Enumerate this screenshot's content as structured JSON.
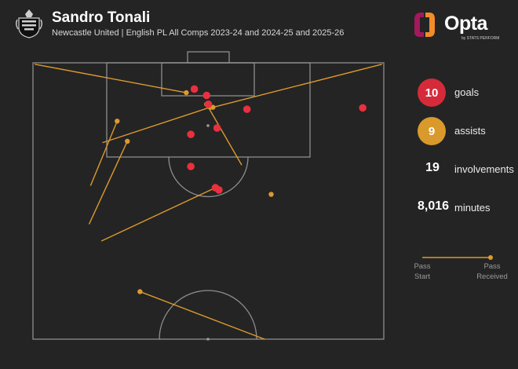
{
  "header": {
    "title": "Sandro Tonali",
    "subtitle": "Newcastle United | English PL All Comps 2023-24 and 2024-25 and 2025-26",
    "brand_name": "Opta",
    "brand_sub": "by STATS PERFORM",
    "crest_icon": "newcastle-crest-icon"
  },
  "stats": [
    {
      "value": "10",
      "label": "goals",
      "color": "#d52a3a"
    },
    {
      "value": "9",
      "label": "assists",
      "color": "#d99a2b"
    },
    {
      "value": "19",
      "label": "involvements"
    },
    {
      "value": "8,016",
      "label": "minutes"
    }
  ],
  "legend": {
    "start_label_1": "Pass",
    "start_label_2": "Start",
    "end_label_1": "Pass",
    "end_label_2": "Received"
  },
  "colors": {
    "goal": "#e8303f",
    "assist": "#dc9a2e",
    "pitch_line": "#9a9a9a",
    "background": "#242424"
  },
  "chart_data": {
    "type": "scatter",
    "title": "Sandro Tonali",
    "subtitle": "Newcastle United | English PL All Comps 2023-24 and 2024-25 and 2025-26",
    "coordinate_system": "pitch, x from left touchline (0-100), y from goal line (0-100)",
    "goals": [
      {
        "x": 46.0,
        "y": 9.5
      },
      {
        "x": 49.5,
        "y": 11.8
      },
      {
        "x": 50.0,
        "y": 15.0
      },
      {
        "x": 61.0,
        "y": 16.8
      },
      {
        "x": 94.0,
        "y": 16.3
      },
      {
        "x": 52.5,
        "y": 23.6
      },
      {
        "x": 45.0,
        "y": 25.9
      },
      {
        "x": 45.0,
        "y": 37.5
      },
      {
        "x": 52.0,
        "y": 45.2
      },
      {
        "x": 53.0,
        "y": 46.0
      }
    ],
    "assists": [
      {
        "start_x": 0.5,
        "start_y": 0.5,
        "end_x": 43.7,
        "end_y": 10.8
      },
      {
        "start_x": 16.4,
        "start_y": 44.5,
        "end_x": 24.0,
        "end_y": 21.1
      },
      {
        "start_x": 16.0,
        "start_y": 58.4,
        "end_x": 26.9,
        "end_y": 28.4
      },
      {
        "start_x": 19.8,
        "start_y": 28.9,
        "end_x": 50.5,
        "end_y": 16.1
      },
      {
        "start_x": 99.5,
        "start_y": 0.5,
        "end_x": 51.3,
        "end_y": 16.1
      },
      {
        "start_x": 59.5,
        "start_y": 37.0,
        "end_x": 49.5,
        "end_y": 15.0
      },
      {
        "start_x": 19.5,
        "start_y": 64.5,
        "end_x": 52.0,
        "end_y": 45.2
      },
      {
        "start_x": 66.0,
        "start_y": 100.0,
        "end_x": 30.5,
        "end_y": 82.8
      },
      {
        "start_x": 67.9,
        "start_y": 47.6,
        "end_x": 67.9,
        "end_y": 47.6
      }
    ]
  }
}
